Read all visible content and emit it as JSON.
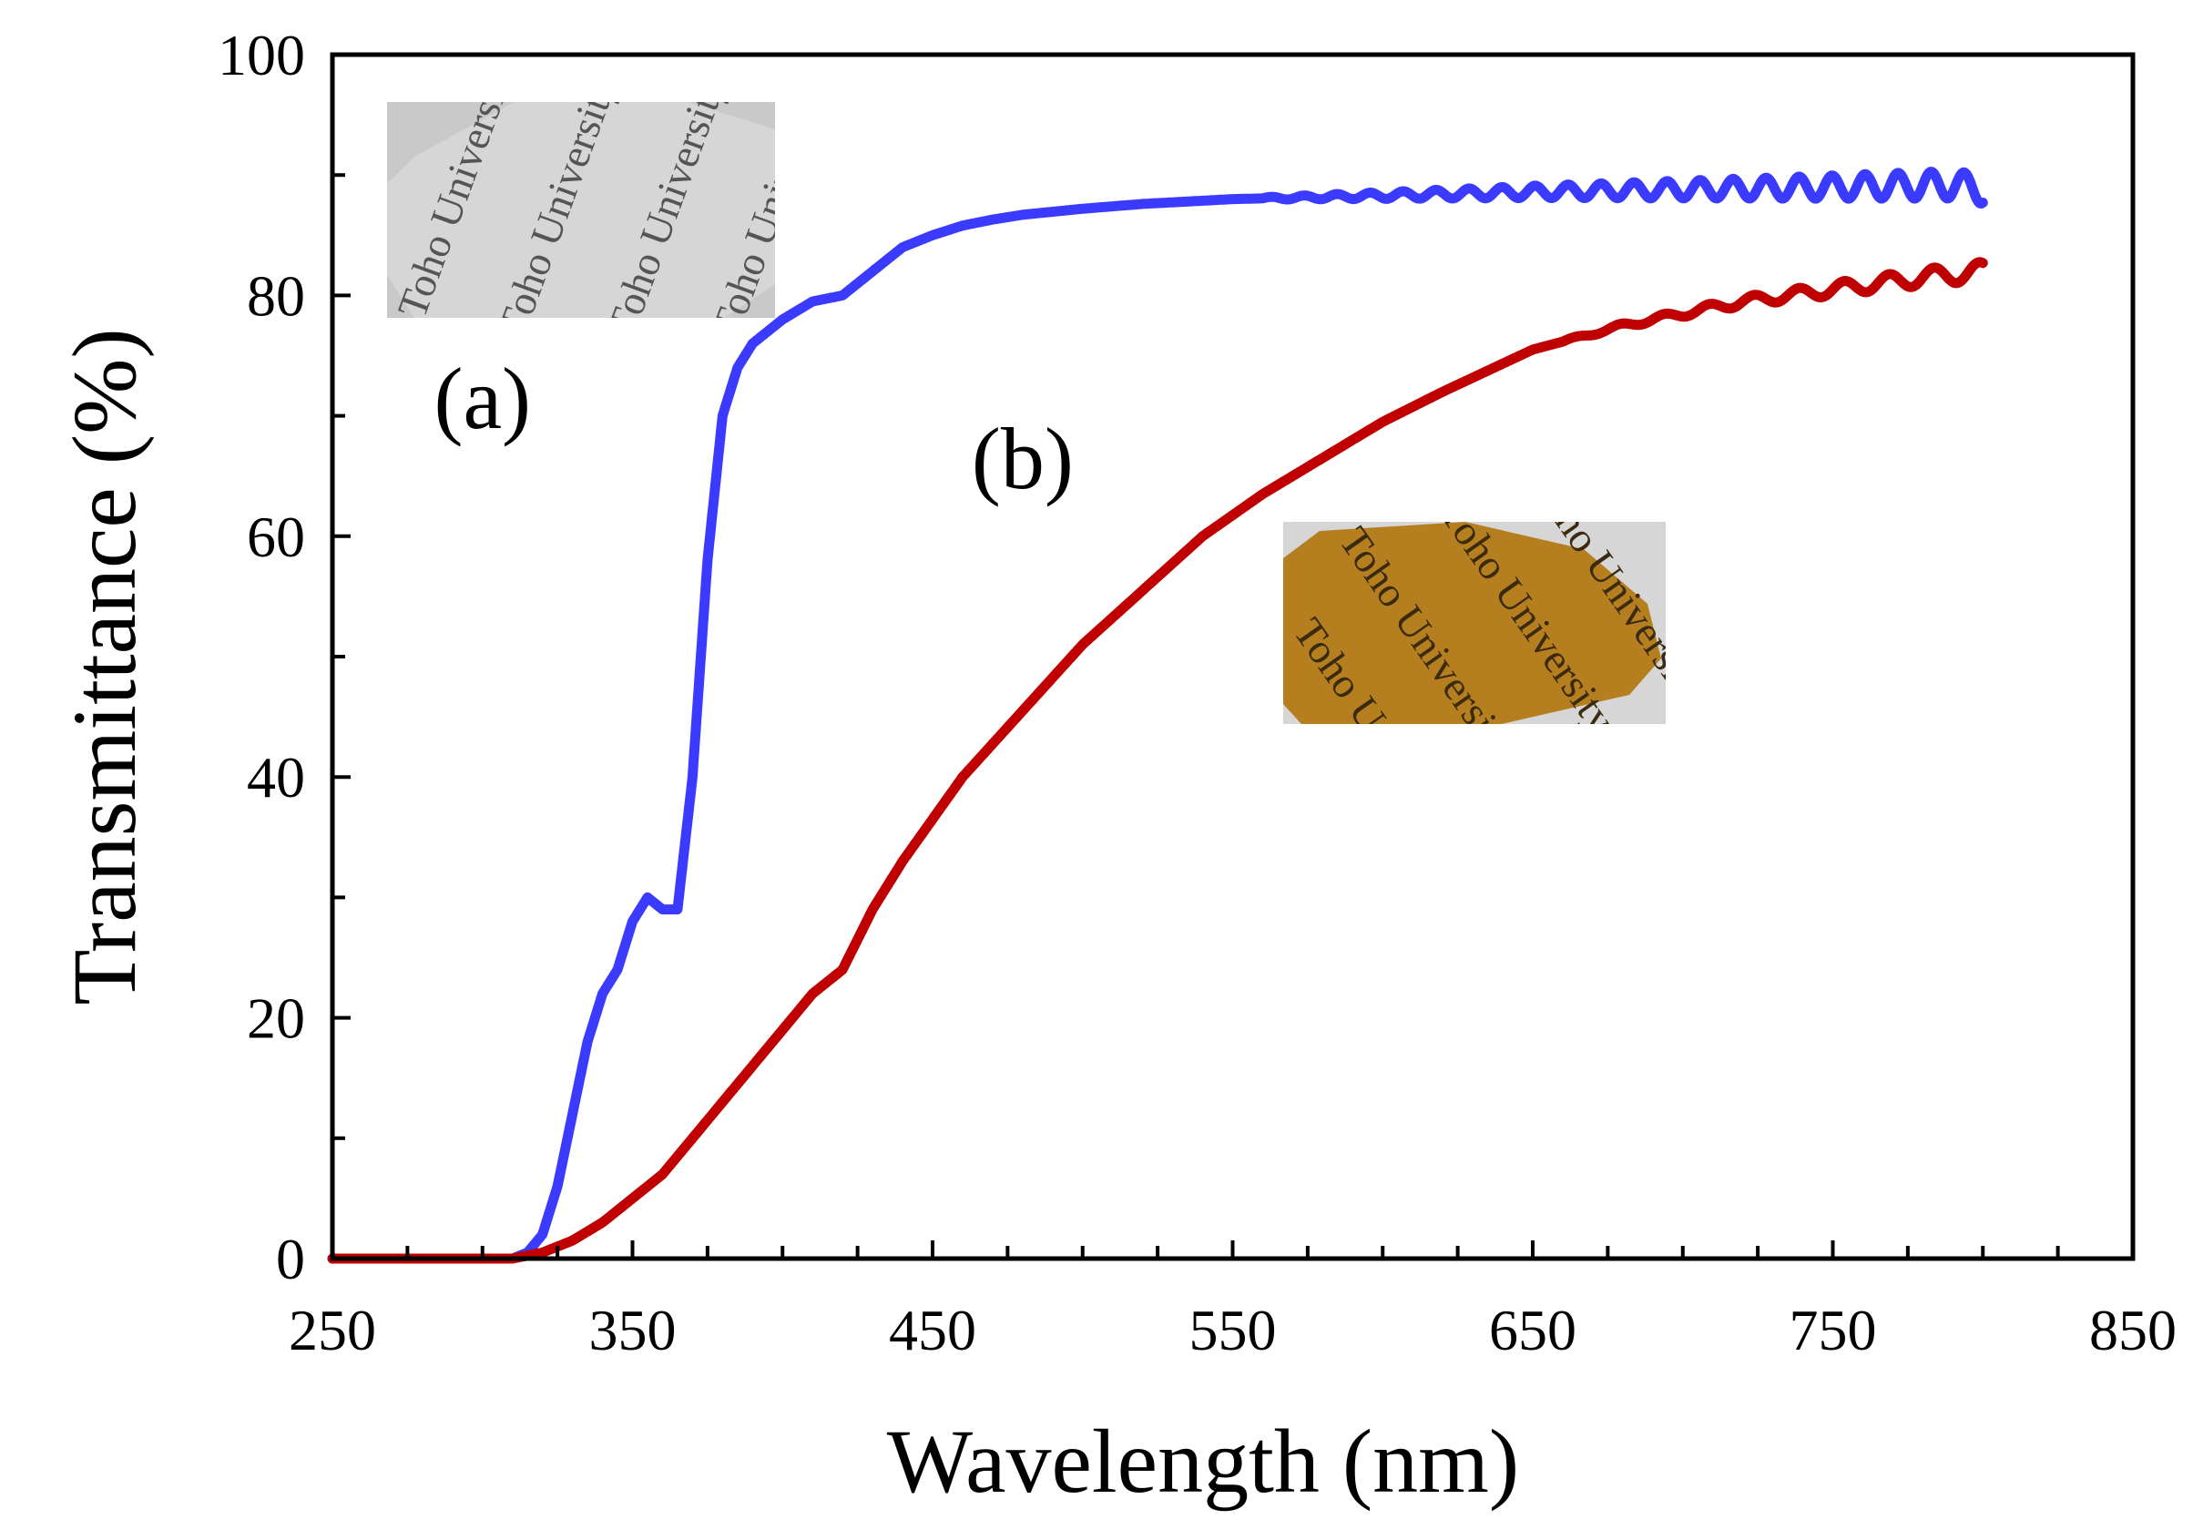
{
  "chart_data": {
    "type": "line",
    "title": "",
    "xlabel": "Wavelength (nm)",
    "ylabel": "Transmittance (%)",
    "xlim": [
      250,
      850
    ],
    "ylim": [
      0,
      100
    ],
    "x_ticks": [
      250,
      350,
      450,
      550,
      650,
      750,
      850
    ],
    "y_ticks": [
      0,
      20,
      40,
      60,
      80,
      100
    ],
    "grid": false,
    "legend": "none",
    "series": [
      {
        "name": "(a)",
        "color": "#3b3bff",
        "x": [
          250,
          310,
          315,
          320,
          325,
          330,
          335,
          340,
          345,
          350,
          355,
          360,
          365,
          370,
          375,
          380,
          385,
          390,
          400,
          410,
          420,
          430,
          440,
          450,
          460,
          470,
          480,
          500,
          520,
          550,
          600,
          650,
          700,
          750,
          790,
          800
        ],
        "y": [
          0,
          0,
          0.5,
          2,
          6,
          12,
          18,
          22,
          24,
          28,
          30,
          29,
          29,
          40,
          58,
          70,
          74,
          76,
          78,
          79.5,
          80,
          82,
          84,
          85,
          85.8,
          86.3,
          86.7,
          87.2,
          87.6,
          88,
          88.3,
          88.6,
          88.8,
          89,
          89.2,
          88.8
        ],
        "oscillation": {
          "start": 560,
          "period": 11,
          "amplitude": [
            0.1,
            1.2
          ]
        }
      },
      {
        "name": "(b)",
        "color": "#c00000",
        "x": [
          250,
          310,
          320,
          330,
          340,
          350,
          360,
          370,
          380,
          390,
          400,
          410,
          420,
          430,
          440,
          450,
          460,
          480,
          500,
          520,
          540,
          560,
          580,
          600,
          620,
          650,
          680,
          700,
          720,
          750,
          780,
          800
        ],
        "y": [
          0,
          0,
          0.5,
          1.5,
          3,
          5,
          7,
          10,
          13,
          16,
          19,
          22,
          24,
          29,
          33,
          36.5,
          40,
          45.5,
          51,
          55.5,
          60,
          63.5,
          66.5,
          69.5,
          72,
          75.5,
          77.5,
          78.5,
          79.5,
          80.5,
          81.5,
          82
        ],
        "oscillation": {
          "start": 660,
          "period": 15,
          "amplitude": [
            0.1,
            0.8
          ]
        }
      }
    ],
    "annotations": [
      {
        "text": "(a)",
        "x": 300,
        "y": 69
      },
      {
        "text": "(b)",
        "x": 480,
        "y": 64
      }
    ],
    "insets": [
      {
        "name": "film-a-photo",
        "text": "Toho University"
      },
      {
        "name": "film-b-photo",
        "text": "Toho University"
      }
    ]
  }
}
